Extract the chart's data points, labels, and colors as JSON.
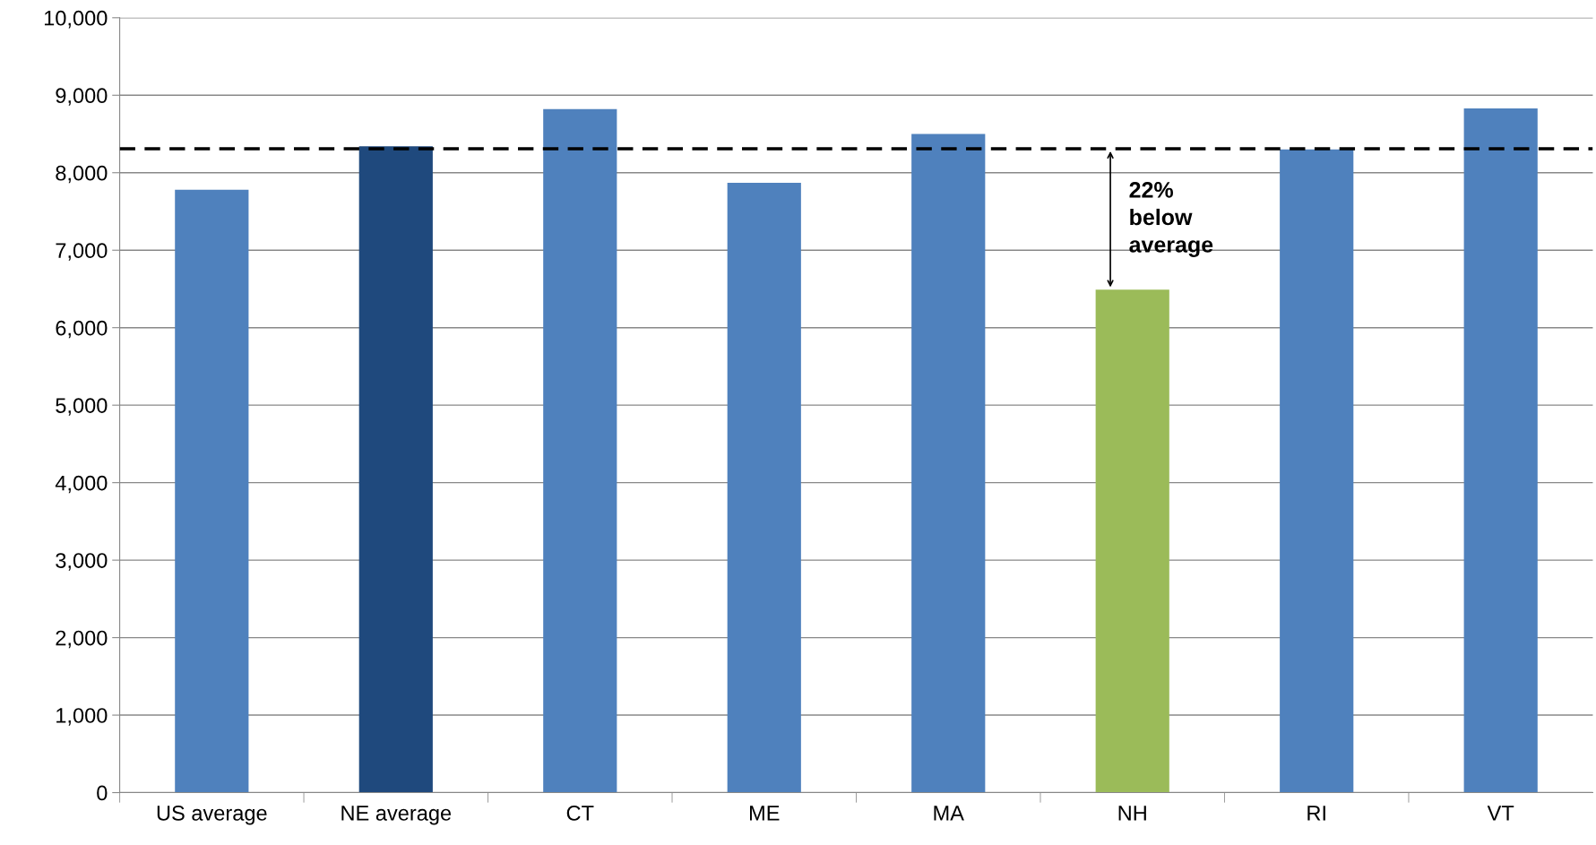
{
  "chart_data": {
    "type": "bar",
    "categories": [
      "US average",
      "NE average",
      "CT",
      "ME",
      "MA",
      "NH",
      "RI",
      "VT"
    ],
    "values": [
      7780,
      8340,
      8820,
      7870,
      8500,
      6490,
      8300,
      8830
    ],
    "colors": [
      "#4f81bd",
      "#1f497d",
      "#4f81bd",
      "#4f81bd",
      "#4f81bd",
      "#9bbb59",
      "#4f81bd",
      "#4f81bd"
    ],
    "ylim": [
      0,
      10000
    ],
    "yticks": [
      0,
      {
        "value": 1000,
        "label": "1,000"
      },
      {
        "value": 2000,
        "label": "2,000"
      },
      {
        "value": 3000,
        "label": "3,000"
      },
      {
        "value": 4000,
        "label": "4,000"
      },
      {
        "value": 5000,
        "label": "5,000"
      },
      {
        "value": 6000,
        "label": "6,000"
      },
      {
        "value": 7000,
        "label": "7,000"
      },
      {
        "value": 8000,
        "label": "8,000"
      },
      {
        "value": 9000,
        "label": "9,000"
      },
      {
        "value": 10000,
        "label": "10,000"
      }
    ],
    "grid": "y",
    "ref_lines": [
      {
        "axis": "y",
        "value": 8310,
        "color": "#000000",
        "line_style": "dashed"
      }
    ],
    "annotations": [
      {
        "text": "22%\nbelow\naverage",
        "x": "NH",
        "y": 6490
      }
    ]
  }
}
